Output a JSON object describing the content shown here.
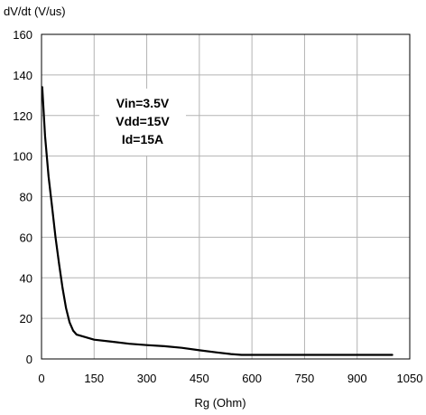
{
  "chart_data": {
    "type": "line",
    "title": "",
    "xlabel": "Rg (Ohm)",
    "ylabel": "dV/dt (V/us)",
    "xlim": [
      0,
      1050
    ],
    "ylim": [
      0,
      160
    ],
    "xticks": [
      0,
      150,
      300,
      450,
      600,
      750,
      900,
      1050
    ],
    "yticks": [
      0,
      20,
      40,
      60,
      80,
      100,
      120,
      140,
      160
    ],
    "xtick_labels": [
      "0",
      "150",
      "300",
      "450",
      "600",
      "750",
      "900",
      "1050"
    ],
    "ytick_labels": [
      "0",
      "20",
      "40",
      "60",
      "80",
      "100",
      "120",
      "140",
      "160"
    ],
    "grid": true,
    "annotation": [
      "Vin=3.5V",
      "Vdd=15V",
      "Id=15A"
    ],
    "series": [
      {
        "line_color": "#000000",
        "x": [
          2,
          10,
          20,
          30,
          40,
          50,
          60,
          70,
          80,
          90,
          100,
          150,
          200,
          250,
          300,
          350,
          400,
          450,
          500,
          540,
          570,
          600,
          700,
          800,
          900,
          1000
        ],
        "y": [
          134,
          110,
          90,
          75,
          60,
          47,
          35,
          25,
          18,
          14,
          12,
          9.5,
          8.5,
          7.5,
          6.8,
          6.3,
          5.5,
          4.3,
          3.2,
          2.4,
          2.0,
          2.0,
          2.0,
          2.0,
          2.0,
          2.0
        ]
      }
    ]
  }
}
